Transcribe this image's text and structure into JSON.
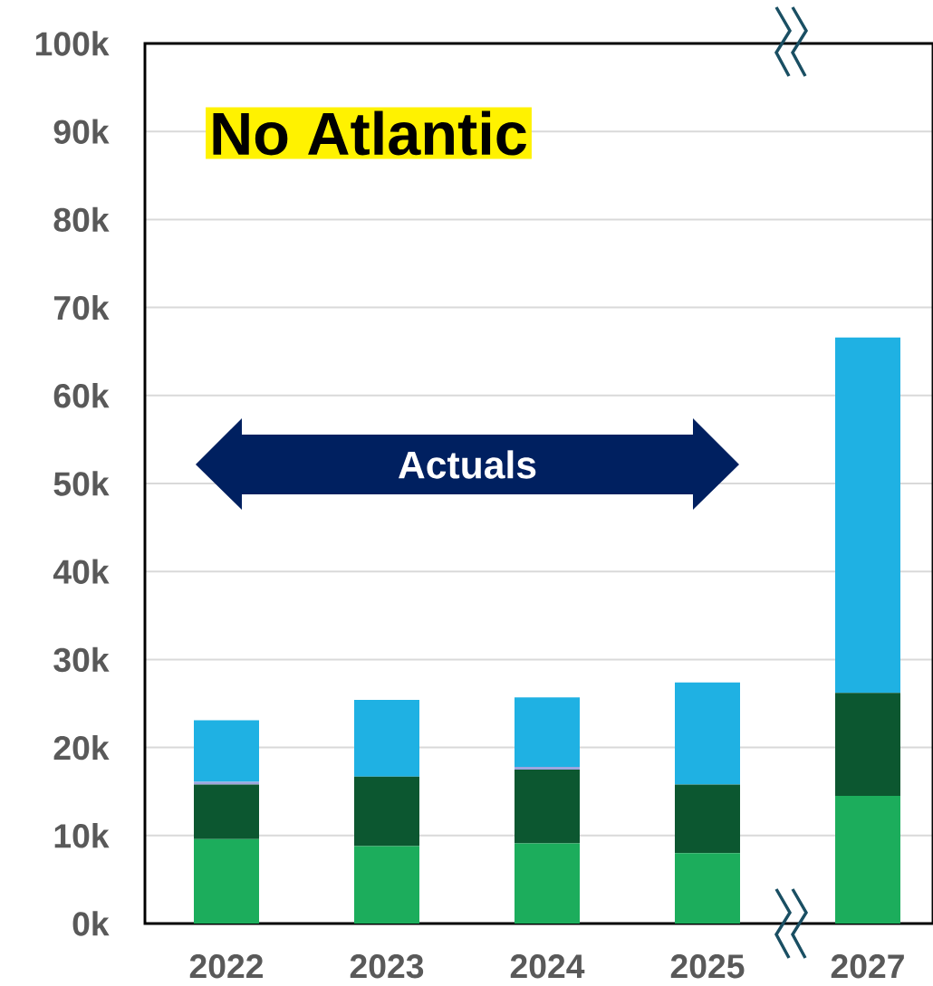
{
  "chart_data": {
    "type": "bar",
    "stacked": true,
    "grid": "y",
    "categories": [
      "2022",
      "2023",
      "2024",
      "2025",
      "2027"
    ],
    "series": [
      {
        "color": "#1cad5c",
        "values": [
          9.6,
          8.8,
          9.1,
          8.0,
          14.5
        ]
      },
      {
        "color": "#0c5730",
        "values": [
          6.2,
          7.9,
          8.4,
          7.8,
          11.7
        ]
      },
      {
        "color": "#9ea6de",
        "values": [
          0.3,
          0,
          0.3,
          0,
          0
        ]
      },
      {
        "color": "#1fb1e3",
        "values": [
          7.0,
          8.7,
          7.9,
          11.6,
          40.4
        ]
      }
    ],
    "ylim": [
      0,
      100
    ],
    "yticks": [
      {
        "value": 0,
        "label": "0k"
      },
      {
        "value": 10,
        "label": "10k"
      },
      {
        "value": 20,
        "label": "20k"
      },
      {
        "value": 30,
        "label": "30k"
      },
      {
        "value": 40,
        "label": "40k"
      },
      {
        "value": 50,
        "label": "50k"
      },
      {
        "value": 60,
        "label": "60k"
      },
      {
        "value": 70,
        "label": "70k"
      },
      {
        "value": 80,
        "label": "80k"
      },
      {
        "value": 90,
        "label": "90k"
      },
      {
        "value": 100,
        "label": "100k"
      }
    ],
    "annotations": [
      "No Atlantic",
      "Actuals"
    ]
  }
}
